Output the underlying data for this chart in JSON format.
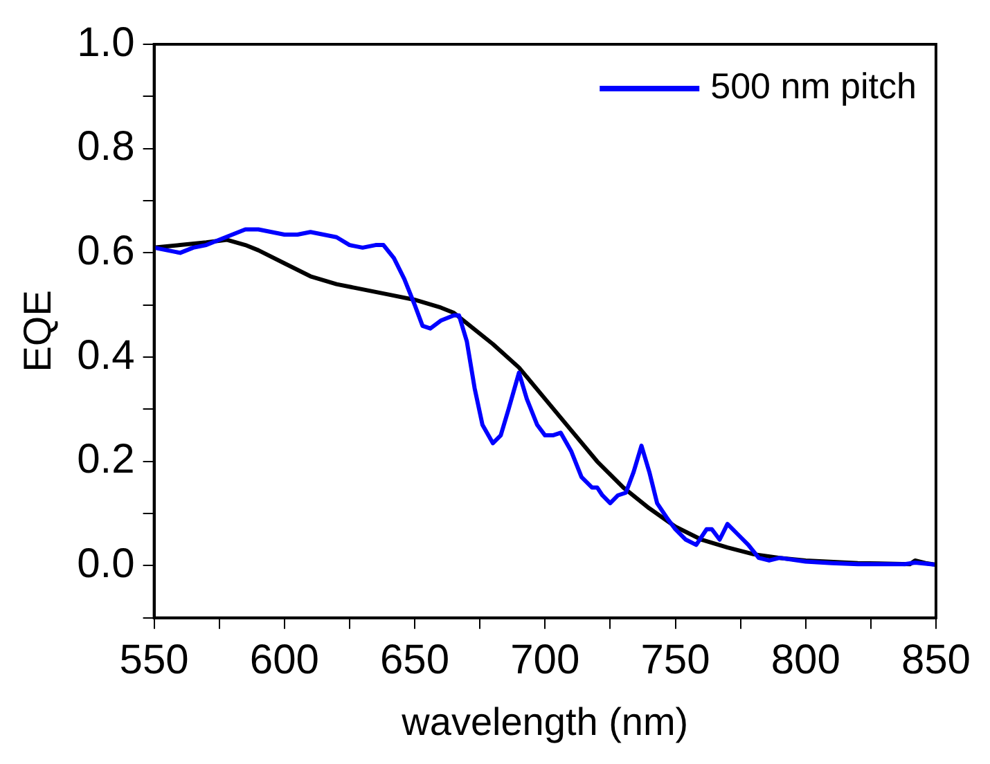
{
  "chart_data": {
    "type": "line",
    "xlabel": "wavelength (nm)",
    "ylabel": "EQE",
    "xlim": [
      550,
      850
    ],
    "ylim": [
      -0.1,
      1.0
    ],
    "xticks": [
      550,
      {
        "value": 575,
        "label": null
      },
      600,
      {
        "value": 625,
        "label": null
      },
      650,
      {
        "value": 675,
        "label": null
      },
      700,
      {
        "value": 725,
        "label": null
      },
      750,
      {
        "value": 775,
        "label": null
      },
      800,
      {
        "value": 825,
        "label": null
      },
      850
    ],
    "yticks": [
      {
        "value": -0.1,
        "label": null
      },
      {
        "value": 0,
        "label": "0.0"
      },
      {
        "value": 0.1,
        "label": null
      },
      {
        "value": 0.2,
        "label": "0.2"
      },
      {
        "value": 0.3,
        "label": null
      },
      {
        "value": 0.4,
        "label": "0.4"
      },
      {
        "value": 0.5,
        "label": null
      },
      {
        "value": 0.6,
        "label": "0.6"
      },
      {
        "value": 0.7,
        "label": null
      },
      {
        "value": 0.8,
        "label": "0.8"
      },
      {
        "value": 0.9,
        "label": null
      },
      {
        "value": 1.0,
        "label": "1.0"
      }
    ],
    "grid": false,
    "legend": "top right",
    "marker": "none",
    "line_style": "solid",
    "series": [
      {
        "name": "500 nm pitch",
        "color": "#0000ff",
        "x": [
          550,
          555,
          560,
          565,
          570,
          575,
          580,
          585,
          590,
          595,
          600,
          605,
          610,
          615,
          620,
          625,
          630,
          635,
          638,
          642,
          646,
          650,
          653,
          656,
          660,
          665,
          667,
          670,
          673,
          676,
          680,
          683,
          686,
          690,
          693,
          697,
          700,
          703,
          706,
          710,
          714,
          718,
          720,
          722,
          725,
          728,
          731,
          734,
          737,
          740,
          743,
          747,
          750,
          754,
          758,
          762,
          764,
          767,
          770,
          774,
          778,
          782,
          786,
          790,
          800,
          810,
          820,
          830,
          838,
          842,
          846,
          850
        ],
        "values": [
          0.61,
          0.605,
          0.6,
          0.61,
          0.615,
          0.625,
          0.635,
          0.645,
          0.645,
          0.64,
          0.635,
          0.635,
          0.64,
          0.635,
          0.63,
          0.615,
          0.61,
          0.615,
          0.615,
          0.59,
          0.55,
          0.5,
          0.46,
          0.455,
          0.47,
          0.48,
          0.48,
          0.43,
          0.34,
          0.27,
          0.235,
          0.25,
          0.3,
          0.37,
          0.32,
          0.27,
          0.25,
          0.25,
          0.255,
          0.22,
          0.17,
          0.15,
          0.15,
          0.135,
          0.12,
          0.135,
          0.14,
          0.18,
          0.23,
          0.18,
          0.12,
          0.09,
          0.07,
          0.05,
          0.04,
          0.07,
          0.07,
          0.05,
          0.08,
          0.06,
          0.04,
          0.015,
          0.01,
          0.015,
          0.008,
          0.005,
          0.003,
          0.003,
          0.003,
          0.006,
          0.004,
          0.002
        ]
      },
      {
        "color": "#000000",
        "x": [
          550,
          560,
          570,
          578,
          585,
          590,
          600,
          610,
          620,
          630,
          640,
          650,
          660,
          665,
          670,
          680,
          690,
          700,
          710,
          720,
          730,
          740,
          750,
          760,
          770,
          780,
          790,
          800,
          820,
          840,
          842,
          846,
          850
        ],
        "values": [
          0.61,
          0.615,
          0.62,
          0.625,
          0.615,
          0.605,
          0.58,
          0.555,
          0.54,
          0.53,
          0.52,
          0.51,
          0.495,
          0.485,
          0.465,
          0.425,
          0.38,
          0.32,
          0.26,
          0.2,
          0.15,
          0.11,
          0.075,
          0.05,
          0.035,
          0.022,
          0.015,
          0.01,
          0.005,
          0.003,
          0.01,
          0.005,
          0.002
        ]
      }
    ]
  }
}
